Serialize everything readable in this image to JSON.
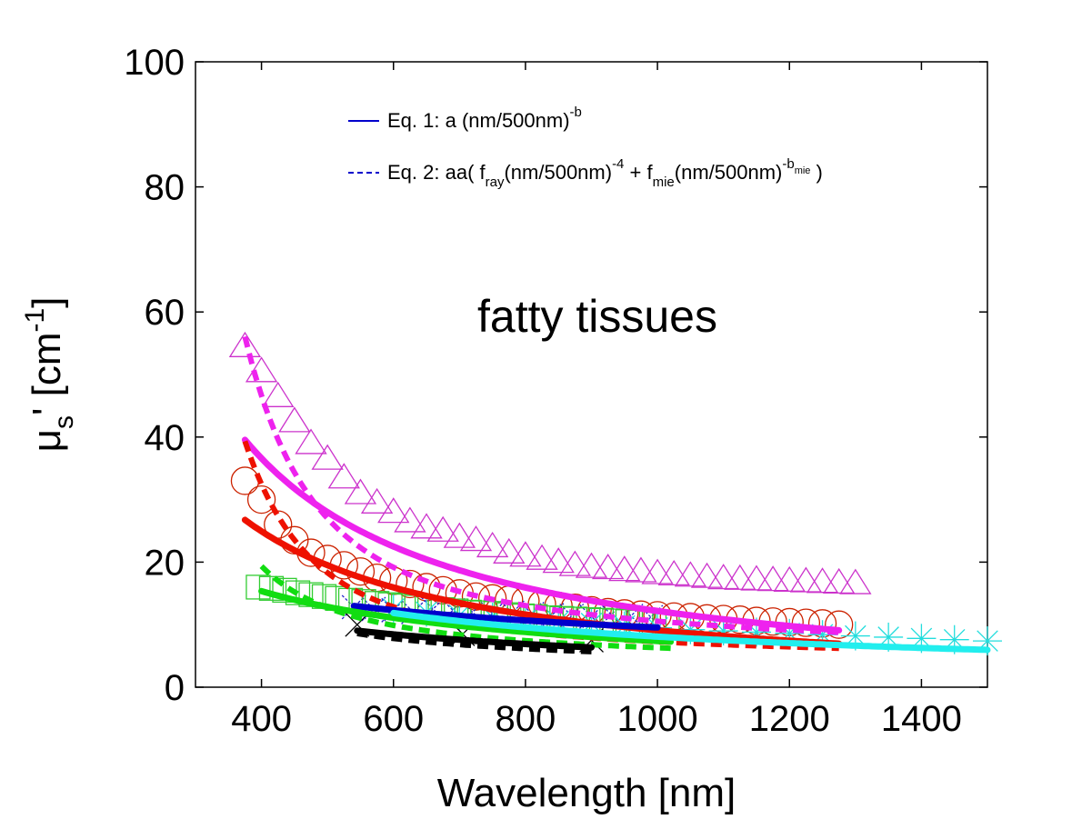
{
  "chart_data": {
    "type": "scatter",
    "annotation": "fatty tissues",
    "xlabel": "Wavelength [nm]",
    "ylabel_parts": {
      "mu": "μ",
      "sub_s": "s",
      "prime_bracket": "' [cm",
      "sup": "-1",
      "close": "]"
    },
    "xlim": [
      300,
      1500
    ],
    "ylim": [
      0,
      100
    ],
    "xticks": [
      400,
      600,
      800,
      1000,
      1200,
      1400
    ],
    "yticks": [
      0,
      20,
      40,
      60,
      80,
      100
    ],
    "grid": false,
    "legend_position": "top",
    "legend": [
      {
        "style": "solid",
        "color": "#0000cc",
        "parts": [
          {
            "t": "Eq. 1: a (nm/500nm)",
            "k": "n"
          },
          {
            "t": "-b",
            "k": "sup"
          }
        ]
      },
      {
        "style": "dashed",
        "color": "#0000cc",
        "parts": [
          {
            "t": "Eq. 2: aa( f",
            "k": "n"
          },
          {
            "t": "ray",
            "k": "sub"
          },
          {
            "t": "(nm/500nm)",
            "k": "n"
          },
          {
            "t": "-4",
            "k": "sup"
          },
          {
            "t": " + f",
            "k": "n"
          },
          {
            "t": "mie",
            "k": "sub"
          },
          {
            "t": "(nm/500nm)",
            "k": "n"
          },
          {
            "t": "-b",
            "k": "sup"
          },
          {
            "t": "mie",
            "k": "supsub"
          },
          {
            "t": " )",
            "k": "n"
          }
        ]
      }
    ],
    "series": [
      {
        "marker": "triangle",
        "color": "#cc33cc",
        "fit_color": "#ee22ee",
        "fit_range": [
          375,
          1275
        ],
        "eq1": {
          "a": 28.0,
          "b": 1.2
        },
        "eq2": {
          "aa": 27.0,
          "fray": 0.45,
          "bmie": 0.6
        },
        "x": [
          375,
          400,
          425,
          450,
          475,
          500,
          525,
          550,
          575,
          600,
          625,
          650,
          675,
          700,
          725,
          750,
          775,
          800,
          825,
          850,
          875,
          900,
          925,
          950,
          975,
          1000,
          1025,
          1050,
          1075,
          1100,
          1125,
          1150,
          1175,
          1200,
          1225,
          1250,
          1275,
          1300
        ],
        "y": [
          54.5,
          50.5,
          46.5,
          42.5,
          39,
          36.5,
          33.5,
          31,
          29.5,
          28,
          26.5,
          25.5,
          25,
          24,
          23.5,
          22.5,
          21.5,
          21,
          20.5,
          20,
          19.5,
          19.2,
          19,
          18.7,
          18.5,
          18.2,
          18,
          17.8,
          17.6,
          17.4,
          17.3,
          17.2,
          17.1,
          17,
          16.9,
          16.8,
          16.7,
          16.6
        ]
      },
      {
        "marker": "circle",
        "color": "#cc2200",
        "fit_color": "#ee1100",
        "fit_range": [
          375,
          1275
        ],
        "eq1": {
          "a": 19.5,
          "b": 1.1
        },
        "eq2": {
          "aa": 18.3,
          "fray": 0.5,
          "bmie": 0.45
        },
        "x": [
          375,
          400,
          425,
          450,
          475,
          500,
          525,
          550,
          575,
          600,
          625,
          650,
          675,
          700,
          725,
          750,
          775,
          800,
          825,
          850,
          875,
          900,
          925,
          950,
          975,
          1000,
          1025,
          1050,
          1075,
          1100,
          1125,
          1150,
          1175,
          1200,
          1225,
          1250,
          1275
        ],
        "y": [
          33,
          30,
          26,
          23.5,
          21.5,
          20.5,
          19.5,
          18.5,
          17.5,
          17,
          16.5,
          16,
          15.5,
          15,
          14.5,
          14.2,
          14,
          13.8,
          13.3,
          13,
          12.7,
          12.3,
          12,
          11.8,
          11.6,
          11.5,
          11.3,
          11.2,
          11,
          10.9,
          10.8,
          10.6,
          10.5,
          10.4,
          10.3,
          10.2,
          10
        ]
      },
      {
        "marker": "x-diag",
        "color": "#2222cc",
        "fit_color": "#0000cc",
        "fit_range": [
          540,
          1000
        ],
        "eq1": {
          "a": 13.5,
          "b": 0.5
        },
        "x": [
          540,
          570,
          600,
          630,
          660,
          690,
          720,
          750,
          780,
          810,
          840,
          870,
          900,
          930,
          960,
          990
        ],
        "y": [
          12.8,
          12.5,
          12.3,
          12,
          12.5,
          12.3,
          12,
          11.8,
          11.9,
          11.7,
          11.5,
          11.4,
          11.3,
          11.6,
          11.4,
          11.2
        ]
      },
      {
        "marker": "square",
        "color": "#33cc33",
        "fit_color": "#11dd11",
        "fit_range": [
          400,
          1020
        ],
        "eq1": {
          "a": 12.85,
          "b": 0.8
        },
        "eq2": {
          "aa": 12.7,
          "fray": 0.3,
          "bmie": 0.55
        },
        "x": [
          395,
          415,
          435,
          455,
          475,
          495,
          515,
          535,
          555,
          575,
          595,
          615,
          635,
          655,
          675,
          695,
          715,
          735,
          755,
          775,
          795,
          815,
          835,
          855,
          875,
          895,
          915,
          935,
          955,
          975,
          995,
          1015
        ],
        "y": [
          16,
          15.8,
          15.5,
          15.1,
          14.8,
          14.5,
          14.2,
          13.9,
          13.7,
          13.4,
          13.2,
          13,
          12.8,
          12.6,
          12.4,
          12.2,
          12,
          11.9,
          11.8,
          11.6,
          11.4,
          11.3,
          11.1,
          11,
          10.9,
          10.8,
          10.7,
          10.6,
          10.5,
          10.4,
          10.3,
          10.2
        ]
      },
      {
        "marker": "asterisk",
        "color": "#22dddd",
        "fit_color": "#22eeee",
        "fit_range": [
          600,
          1500
        ],
        "eq1": {
          "a": 13.6,
          "b": 0.75
        },
        "x": [
          600,
          650,
          700,
          750,
          800,
          850,
          900,
          950,
          1000,
          1050,
          1100,
          1150,
          1200,
          1250,
          1300,
          1350,
          1400,
          1450,
          1500
        ],
        "y": [
          12.5,
          12,
          11.5,
          11.2,
          10.8,
          10.5,
          10.2,
          9.8,
          9.5,
          9.2,
          9,
          8.8,
          8.6,
          8.4,
          8.2,
          8,
          7.8,
          7.6,
          7.4
        ]
      },
      {
        "marker": "x",
        "color": "#000000",
        "fit_color": "#000000",
        "fit_range": [
          545,
          900
        ],
        "eq1": {
          "a": 9.6,
          "b": 0.7
        },
        "eq2": {
          "aa": 9.5,
          "fray": 0.2,
          "bmie": 0.55
        },
        "x": [
          545,
          705,
          900
        ],
        "y": [
          10,
          8.5,
          7.5
        ]
      }
    ]
  }
}
